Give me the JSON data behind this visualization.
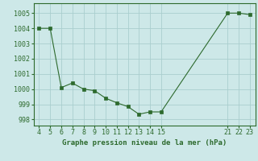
{
  "x": [
    4,
    5,
    6,
    7,
    8,
    9,
    10,
    11,
    12,
    13,
    14,
    15,
    21,
    22,
    23
  ],
  "y": [
    1004.0,
    1004.0,
    1000.1,
    1000.4,
    1000.0,
    999.9,
    999.4,
    999.1,
    998.85,
    998.35,
    998.5,
    998.5,
    1005.0,
    1005.0,
    1004.9
  ],
  "line_color": "#2d6a2d",
  "marker": "s",
  "marker_size": 2.2,
  "bg_color": "#cde8e8",
  "grid_color": "#aacece",
  "xlabel": "Graphe pression niveau de la mer (hPa)",
  "xticks": [
    4,
    5,
    6,
    7,
    8,
    9,
    10,
    11,
    12,
    13,
    14,
    15,
    21,
    22,
    23
  ],
  "yticks": [
    998,
    999,
    1000,
    1001,
    1002,
    1003,
    1004,
    1005
  ],
  "ylim": [
    997.6,
    1005.65
  ],
  "xlim": [
    3.5,
    23.5
  ],
  "xlabel_fontsize": 6.5,
  "tick_fontsize": 6.0,
  "linewidth": 0.8
}
